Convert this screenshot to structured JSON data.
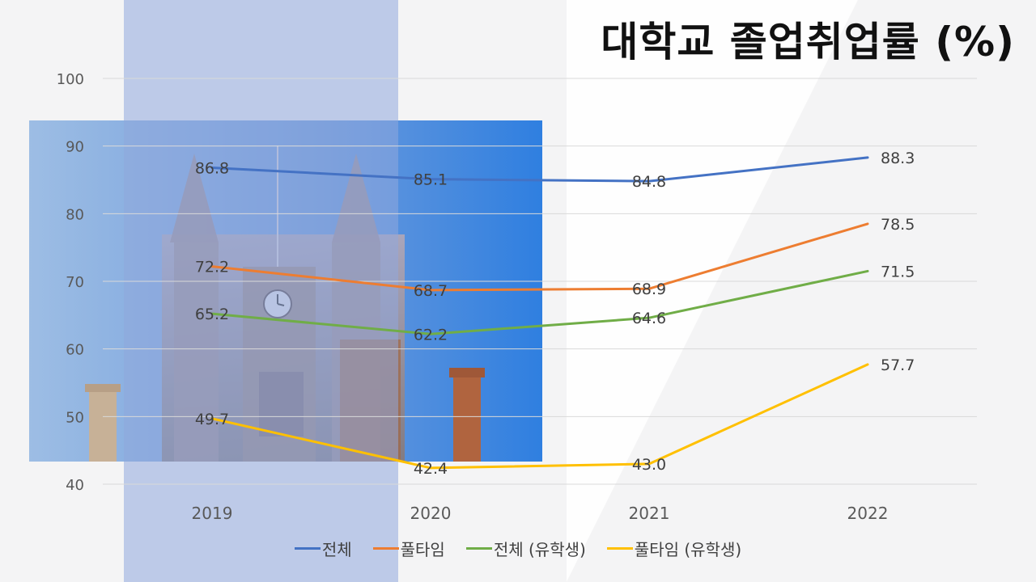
{
  "chart_data": {
    "type": "line",
    "title": "대학교 졸업취업률 (%)",
    "x": [
      "2019",
      "2020",
      "2021",
      "2022"
    ],
    "ylim": [
      40,
      100
    ],
    "yticks": [
      40,
      50,
      60,
      70,
      80,
      90,
      100
    ],
    "grid": true,
    "legend_position": "bottom",
    "data_labels": true,
    "series": [
      {
        "name": "전체",
        "color": "#4472C4",
        "values": [
          86.8,
          85.1,
          84.8,
          88.3
        ]
      },
      {
        "name": "풀타임",
        "color": "#ED7D31",
        "values": [
          72.2,
          68.7,
          68.9,
          78.5
        ]
      },
      {
        "name": "전체 (유학생)",
        "color": "#70AD47",
        "values": [
          65.2,
          62.2,
          64.6,
          71.5
        ]
      },
      {
        "name": "풀타임 (유학생)",
        "color": "#FFC000",
        "values": [
          49.7,
          42.4,
          43.0,
          57.7
        ]
      }
    ]
  },
  "background": {
    "photo_subject": "university-clock-tower",
    "overlay_color": "#8FA8DC"
  }
}
